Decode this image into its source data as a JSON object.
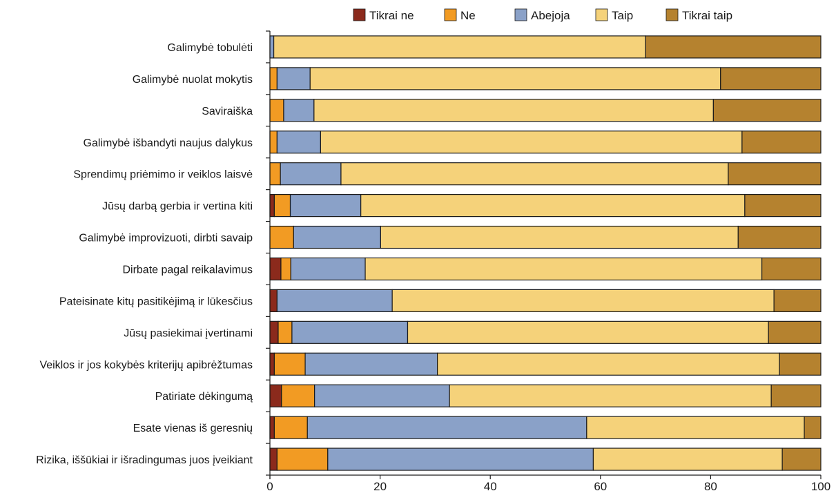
{
  "chart_data": {
    "type": "bar",
    "orientation": "horizontal",
    "stacked": true,
    "title": "",
    "xlabel": "",
    "ylabel": "",
    "xlim": [
      0,
      100
    ],
    "xticks": [
      0,
      20,
      40,
      60,
      80,
      100
    ],
    "grid": false,
    "legend_position": "top",
    "categories": [
      "Galimybė tobulėti",
      "Galimybė nuolat mokytis",
      "Saviraiška",
      "Galimybė išbandyti naujus dalykus",
      "Sprendimų priėmimo ir veiklos laisvė",
      "Jūsų darbą gerbia ir vertina kiti",
      "Galimybė improvizuoti, dirbti savaip",
      "Dirbate pagal reikalavimus",
      "Pateisinate kitų pasitikėjimą ir lūkesčius",
      "Jūsų pasiekimai įvertinami",
      "Veiklos ir jos kokybės kriterijų apibrėžtumas",
      "Patiriate dėkingumą",
      "Esate vienas iš geresnių",
      "Rizika, iššūkiai ir išradingumas juos įveikiant"
    ],
    "series": [
      {
        "name": "Tikrai ne",
        "color": "#8b2a1c",
        "values": [
          0,
          0,
          0,
          0,
          0,
          0.8,
          0,
          2.0,
          1.3,
          1.5,
          0.8,
          2.1,
          0.8,
          1.3
        ]
      },
      {
        "name": "Ne",
        "color": "#f29b23",
        "values": [
          0,
          1.3,
          2.5,
          1.3,
          1.9,
          2.9,
          4.3,
          1.8,
          0,
          2.5,
          5.6,
          6.0,
          6.0,
          9.2
        ]
      },
      {
        "name": "Abejoja",
        "color": "#8aa1c8",
        "values": [
          0.7,
          6.0,
          5.5,
          7.9,
          11.0,
          12.8,
          15.8,
          13.5,
          20.9,
          21.0,
          24.0,
          24.5,
          50.7,
          48.2
        ]
      },
      {
        "name": "Taip",
        "color": "#f5d27a",
        "values": [
          67.5,
          74.5,
          72.5,
          76.5,
          70.3,
          69.7,
          64.9,
          72.0,
          69.3,
          65.5,
          62.1,
          58.4,
          39.5,
          34.3
        ]
      },
      {
        "name": "Tikrai taip",
        "color": "#b5822f",
        "values": [
          31.8,
          18.2,
          19.5,
          14.3,
          16.8,
          13.8,
          15.0,
          10.7,
          8.5,
          9.5,
          7.5,
          9.0,
          3.0,
          7.0
        ]
      }
    ]
  }
}
